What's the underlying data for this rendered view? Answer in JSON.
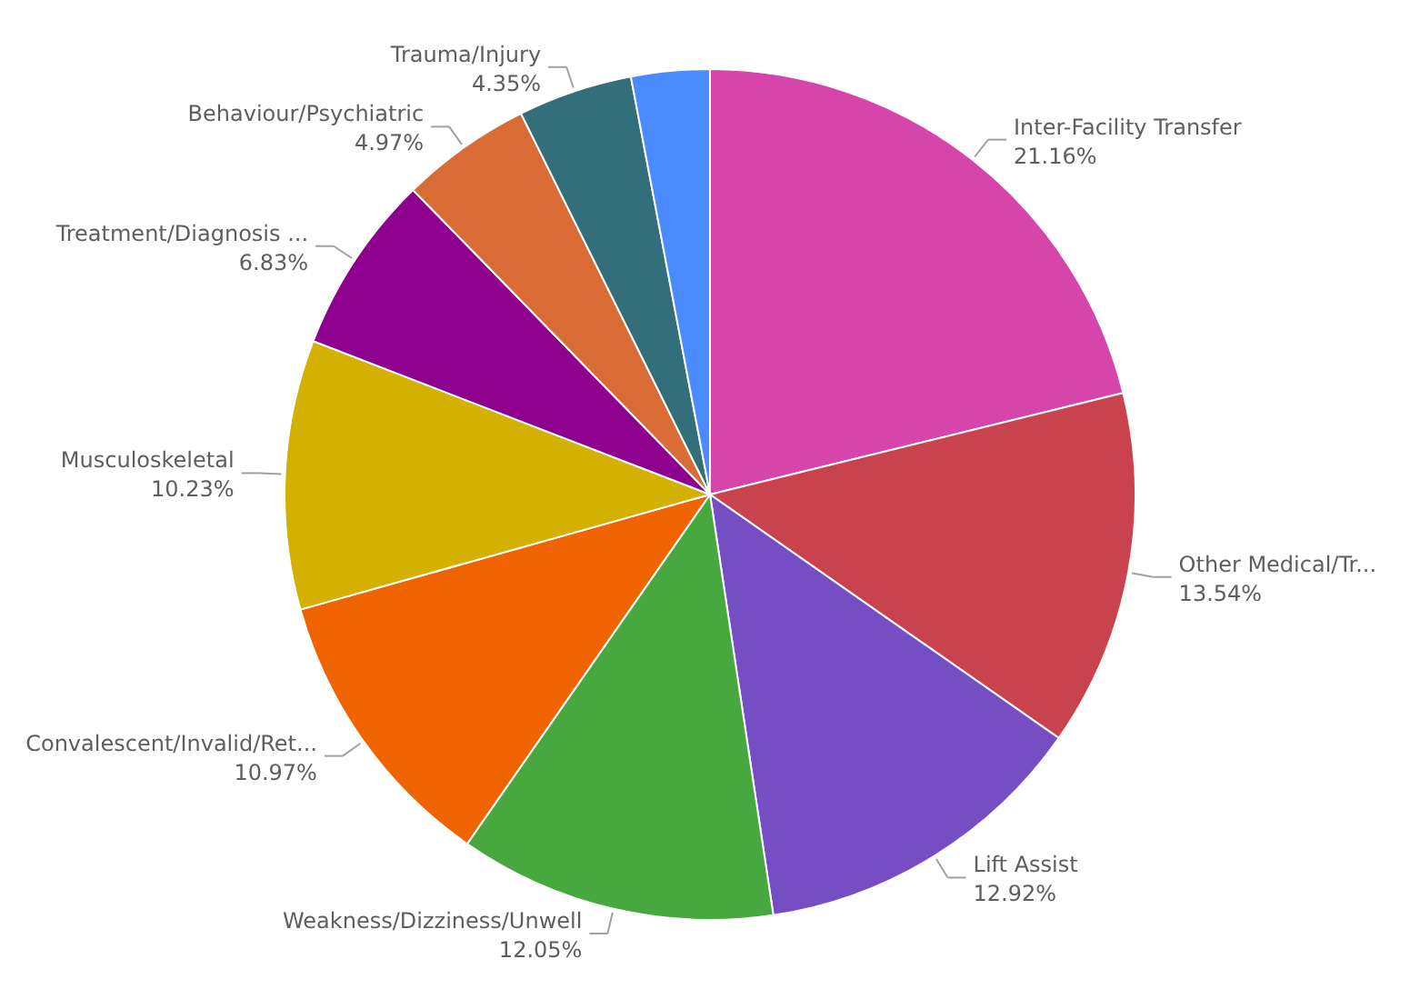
{
  "chart_data": {
    "type": "pie",
    "categories": [
      "Inter-Facility Transfer",
      "Other Medical/Tr...",
      "Lift Assist",
      "Weakness/Dizziness/Unwell",
      "Convalescent/Invalid/Ret...",
      "Musculoskeletal",
      "Treatment/Diagnosis ...",
      "Behaviour/Psychiatric",
      "Trauma/Injury",
      null
    ],
    "values": [
      21.16,
      13.54,
      12.92,
      12.05,
      10.97,
      10.23,
      6.83,
      4.97,
      4.35,
      2.98
    ],
    "value_labels": [
      "21.16%",
      "13.54%",
      "12.92%",
      "12.05%",
      "10.97%",
      "10.23%",
      "6.83%",
      "4.97%",
      "4.35%",
      null
    ],
    "colors": [
      "#d645a9",
      "#c9434e",
      "#744ec2",
      "#46a83e",
      "#f06400",
      "#d4b000",
      "#8e008e",
      "#d96b34",
      "#336e7b",
      "#4a8cff"
    ]
  }
}
